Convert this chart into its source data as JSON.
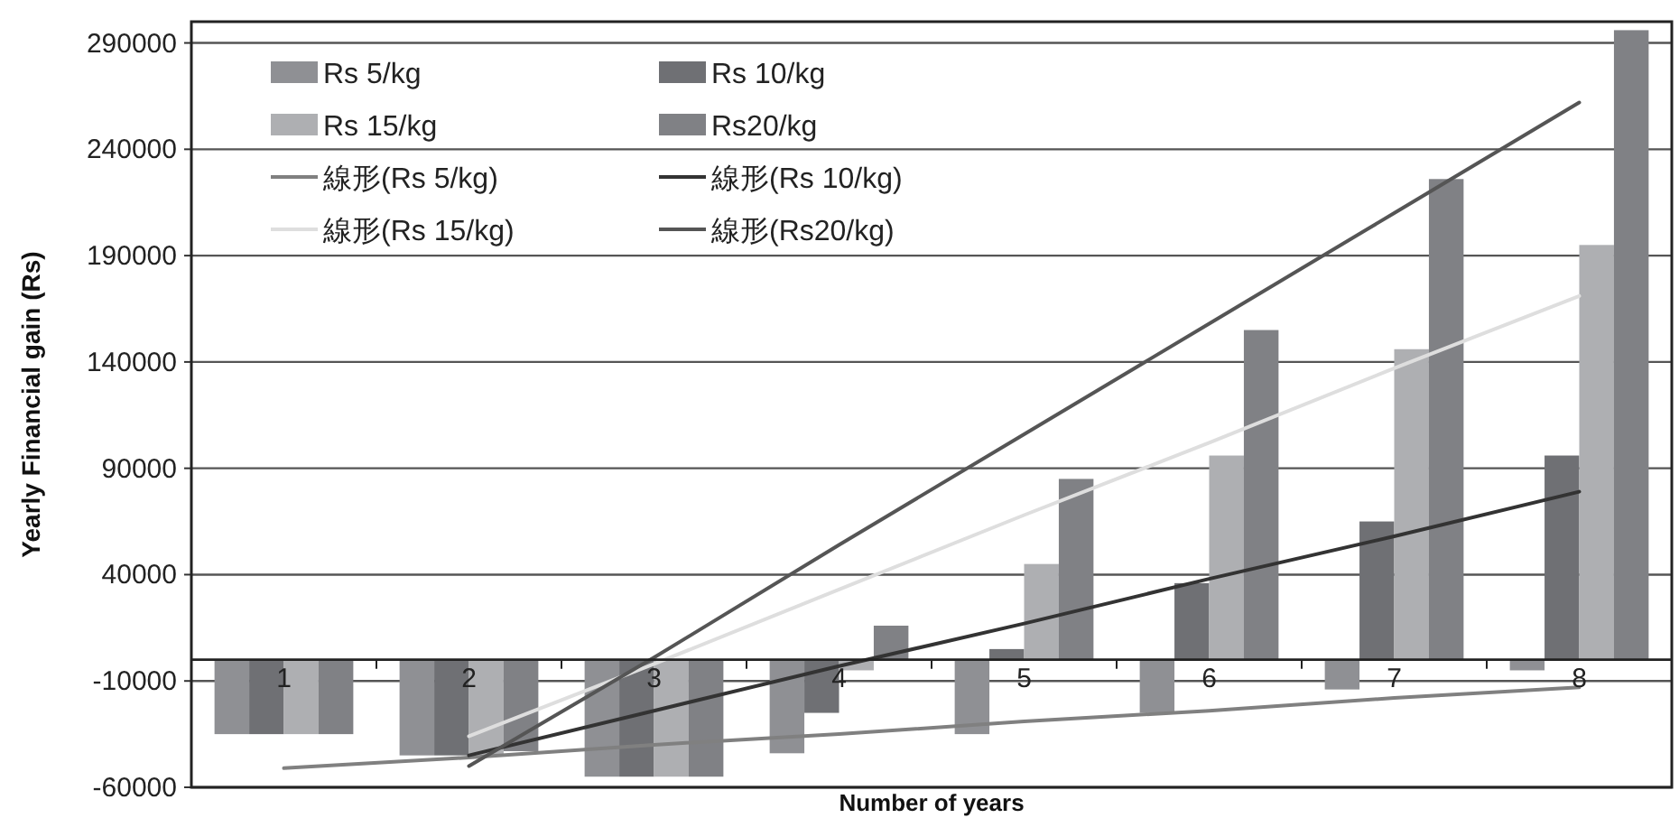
{
  "chart_data": {
    "type": "bar",
    "xlabel": "Number of years",
    "ylabel": "Yearly Financial gain (Rs)",
    "categories": [
      "1",
      "2",
      "3",
      "4",
      "5",
      "6",
      "7",
      "8"
    ],
    "ylim": [
      -60000,
      300000
    ],
    "yticks": [
      -60000,
      -10000,
      40000,
      90000,
      140000,
      190000,
      240000,
      290000
    ],
    "grid": "y",
    "legend": "top left",
    "series": [
      {
        "name": "Rs 5/kg",
        "color": "#8f9094",
        "values": [
          -35000,
          -45000,
          -55000,
          -44000,
          -35000,
          -25000,
          -14000,
          -5000
        ]
      },
      {
        "name": "Rs 10/kg",
        "color": "#6f7074",
        "values": [
          -35000,
          -45000,
          -55000,
          -25000,
          5000,
          36000,
          65000,
          96000
        ]
      },
      {
        "name": "Rs 15/kg",
        "color": "#aeafb2",
        "values": [
          -35000,
          -45000,
          -55000,
          -5000,
          45000,
          96000,
          146000,
          195000
        ]
      },
      {
        "name": "Rs20/kg",
        "color": "#808185",
        "values": [
          -35000,
          -43000,
          -55000,
          16000,
          85000,
          155000,
          226000,
          296000
        ]
      },
      {
        "name": "線形(Rs 5/kg)",
        "type": "line",
        "color": "#808080",
        "values": [
          -51000,
          -46000,
          -40000,
          -35000,
          -29000,
          -24000,
          -18000,
          -13000
        ]
      },
      {
        "name": "線形(Rs 10/kg)",
        "type": "line",
        "color": "#333333",
        "values": [
          null,
          -45000,
          -24000,
          -3000,
          17000,
          38000,
          58000,
          79000
        ]
      },
      {
        "name": "線形(Rs 15/kg)",
        "type": "line",
        "color": "#dedede",
        "values": [
          null,
          -36000,
          -2000,
          33000,
          68000,
          102000,
          137000,
          171000
        ]
      },
      {
        "name": "線形(Rs20/kg)",
        "type": "line",
        "color": "#555555",
        "values": [
          null,
          -50000,
          1000,
          54000,
          106000,
          158000,
          210000,
          262000
        ]
      }
    ]
  }
}
